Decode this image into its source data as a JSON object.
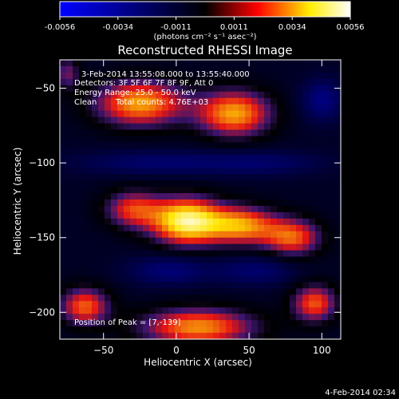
{
  "colorbar": {
    "ticks": [
      "-0.0056",
      "-0.0034",
      "-0.0011",
      "0.0011",
      "0.0034",
      "0.0056"
    ],
    "unit": "(photons cm⁻² s⁻¹ asec⁻²)",
    "range": [
      -0.0056,
      0.0056
    ],
    "colors": [
      "#0000ff",
      "#000000",
      "#ff0000",
      "#ffff00",
      "#ffffff"
    ]
  },
  "title": "Reconstructed RHESSI Image",
  "annotations": {
    "time_range": "3-Feb-2014 13:55:08.000 to 13:55:40.000",
    "detectors": "Detectors: 3F 5F 6F 7F 8F 9F, Att 0",
    "energy": "Energy Range: 25.0 - 50.0 keV",
    "clean": "Clean",
    "total_counts": "Total counts: 4.76E+03",
    "peak": "Position of Peak = [7,-139]"
  },
  "footer_timestamp": "4-Feb-2014 02:34",
  "chart_data": {
    "type": "heatmap",
    "title": "Reconstructed RHESSI Image",
    "xlabel": "Heliocentric X (arcsec)",
    "ylabel": "Heliocentric Y (arcsec)",
    "xlim": [
      -80,
      113
    ],
    "ylim": [
      -218,
      -31
    ],
    "xticks": [
      -50,
      0,
      50,
      100
    ],
    "yticks": [
      -50,
      -100,
      -150,
      -200
    ],
    "peak": [
      7,
      -139
    ],
    "sources": [
      {
        "x": -25,
        "y": -60,
        "amp": 0.0042,
        "sx": 22,
        "sy": 11
      },
      {
        "x": 40,
        "y": -67,
        "amp": 0.0042,
        "sx": 18,
        "sy": 11
      },
      {
        "x": 7,
        "y": -139,
        "amp": 0.0056,
        "sx": 17,
        "sy": 11
      },
      {
        "x": -30,
        "y": -131,
        "amp": 0.003,
        "sx": 14,
        "sy": 9
      },
      {
        "x": 45,
        "y": -142,
        "amp": 0.004,
        "sx": 17,
        "sy": 9
      },
      {
        "x": 80,
        "y": -150,
        "amp": 0.0034,
        "sx": 14,
        "sy": 9
      },
      {
        "x": -63,
        "y": -196,
        "amp": 0.0035,
        "sx": 12,
        "sy": 9
      },
      {
        "x": 15,
        "y": -210,
        "amp": 0.004,
        "sx": 28,
        "sy": 9
      },
      {
        "x": 95,
        "y": -194,
        "amp": 0.0034,
        "sx": 11,
        "sy": 9
      },
      {
        "x": -75,
        "y": -40,
        "amp": 0.002,
        "sx": 6,
        "sy": 8
      },
      {
        "x": -15,
        "y": -100,
        "amp": -0.0015,
        "sx": 40,
        "sy": 6
      },
      {
        "x": 60,
        "y": -100,
        "amp": -0.0013,
        "sx": 30,
        "sy": 6
      },
      {
        "x": -5,
        "y": -172,
        "amp": -0.0018,
        "sx": 20,
        "sy": 7
      },
      {
        "x": 55,
        "y": -172,
        "amp": -0.0016,
        "sx": 20,
        "sy": 7
      },
      {
        "x": 100,
        "y": -58,
        "amp": -0.002,
        "sx": 10,
        "sy": 10
      }
    ],
    "base": -0.0008
  }
}
